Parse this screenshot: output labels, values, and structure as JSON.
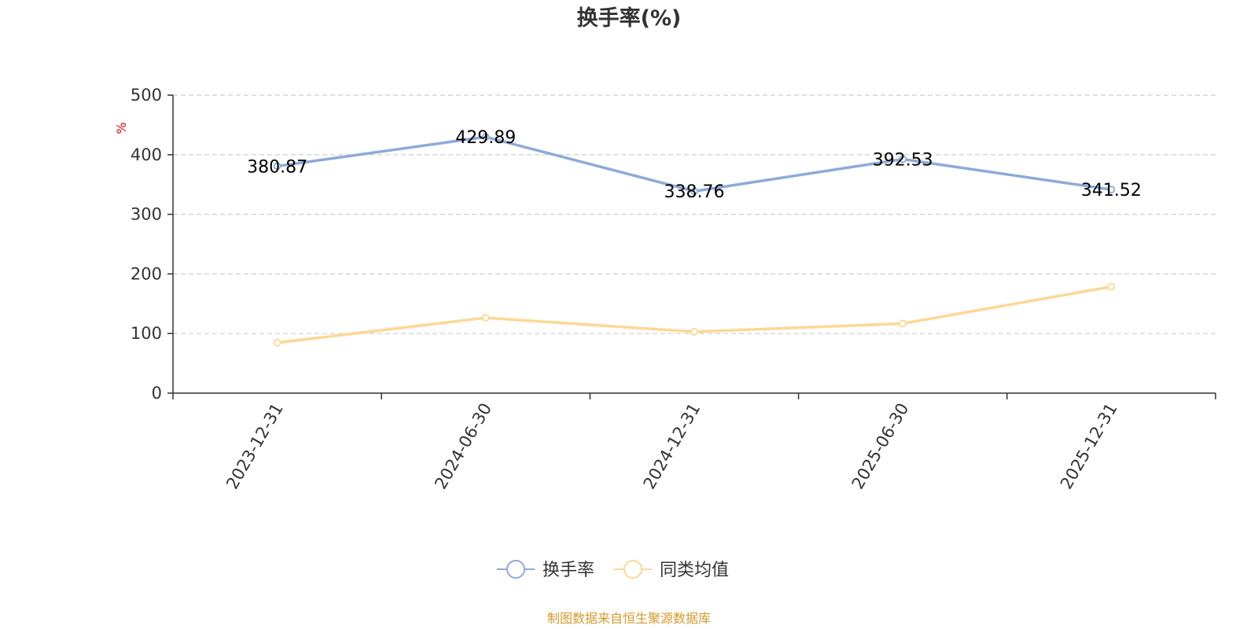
{
  "chart_data": {
    "type": "line",
    "title": "换手率(%)",
    "ylabel": "%",
    "categories": [
      "2023-12-31",
      "2024-06-30",
      "2024-12-31",
      "2025-06-30",
      "2025-12-31"
    ],
    "ylim": [
      0,
      500
    ],
    "yticks": [
      "0",
      "100",
      "200",
      "300",
      "400",
      "500"
    ],
    "grid": true,
    "legend_position": "bottom",
    "series": [
      {
        "name": "换手率",
        "values": [
          380.87,
          429.89,
          338.76,
          392.53,
          341.52
        ],
        "color": "#8eaad9",
        "labels": [
          "380.87",
          "429.89",
          "338.76",
          "392.53",
          "341.52"
        ]
      },
      {
        "name": "同类均值",
        "values": [
          84.6,
          126.4,
          103.0,
          116.7,
          178.6
        ],
        "color": "#fcd896"
      }
    ]
  },
  "source_note": "制图数据来自恒生聚源数据库",
  "colors": {
    "unit_label": "#ee0000",
    "source_note": "#d39a2c",
    "axis": "#333333",
    "grid": "#cccccc"
  }
}
